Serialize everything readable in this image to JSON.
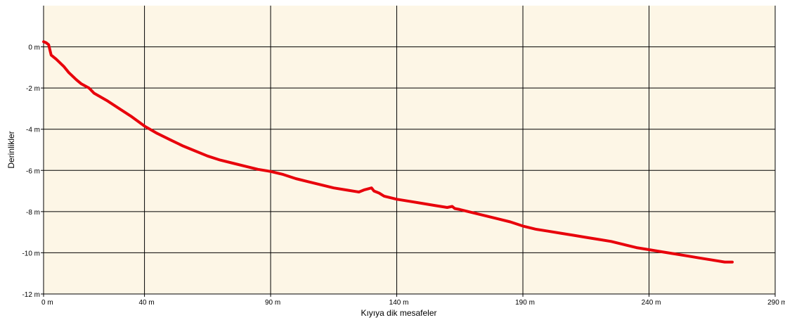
{
  "chart_data": {
    "type": "line",
    "title": "",
    "xlabel": "Kıyıya dik mesafeler",
    "ylabel": "Derinlikler",
    "xlim": [
      0,
      290
    ],
    "ylim": [
      -12,
      2
    ],
    "x_ticks": [
      0,
      40,
      90,
      140,
      190,
      240,
      290
    ],
    "y_ticks": [
      0,
      -2,
      -4,
      -6,
      -8,
      -10,
      -12
    ],
    "x_tick_labels": [
      "0 m",
      "40 m",
      "90 m",
      "140 m",
      "190 m",
      "240 m",
      "290 m"
    ],
    "y_tick_labels": [
      "0 m",
      "-2 m",
      "-4 m",
      "-6 m",
      "-8 m",
      "-10 m",
      "-12 m"
    ],
    "grid": true,
    "plot_background": "#fdf6e6",
    "grid_color": "#000000",
    "series": [
      {
        "color": "#e8000b",
        "x": [
          0,
          1,
          2,
          3,
          5,
          8,
          10,
          13,
          15,
          18,
          20,
          25,
          30,
          35,
          40,
          45,
          50,
          55,
          60,
          65,
          70,
          75,
          80,
          85,
          90,
          95,
          100,
          105,
          110,
          115,
          120,
          125,
          127,
          130,
          131,
          133,
          135,
          140,
          145,
          150,
          155,
          160,
          162,
          163,
          165,
          170,
          175,
          180,
          185,
          190,
          195,
          200,
          205,
          210,
          215,
          220,
          225,
          230,
          235,
          240,
          245,
          250,
          255,
          260,
          265,
          270,
          273
        ],
        "y": [
          0.25,
          0.2,
          0.1,
          -0.4,
          -0.6,
          -0.95,
          -1.25,
          -1.6,
          -1.8,
          -2.0,
          -2.25,
          -2.6,
          -3.0,
          -3.4,
          -3.85,
          -4.2,
          -4.5,
          -4.8,
          -5.05,
          -5.3,
          -5.5,
          -5.65,
          -5.8,
          -5.95,
          -6.05,
          -6.2,
          -6.4,
          -6.55,
          -6.7,
          -6.85,
          -6.95,
          -7.05,
          -6.95,
          -6.85,
          -7.0,
          -7.1,
          -7.25,
          -7.4,
          -7.5,
          -7.6,
          -7.7,
          -7.8,
          -7.75,
          -7.85,
          -7.9,
          -8.05,
          -8.2,
          -8.35,
          -8.5,
          -8.7,
          -8.85,
          -8.95,
          -9.05,
          -9.15,
          -9.25,
          -9.35,
          -9.45,
          -9.6,
          -9.75,
          -9.85,
          -9.95,
          -10.05,
          -10.15,
          -10.25,
          -10.35,
          -10.45,
          -10.45
        ]
      }
    ]
  }
}
